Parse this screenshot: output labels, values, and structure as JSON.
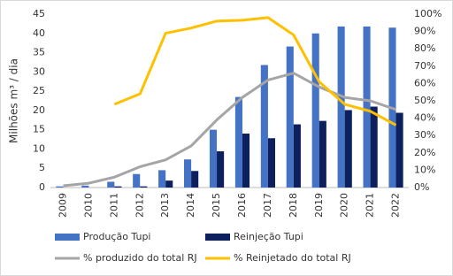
{
  "chart_data": {
    "type": "bar",
    "categories": [
      "2009",
      "2010",
      "2011",
      "2012",
      "2013",
      "2014",
      "2015",
      "2016",
      "2017",
      "2018",
      "2019",
      "2020",
      "2021",
      "2022"
    ],
    "y_label": "Milhões m³ / dia",
    "ylim": [
      0,
      45
    ],
    "yticks": [
      0,
      5,
      10,
      15,
      20,
      25,
      30,
      35,
      40,
      45
    ],
    "y2lim": [
      0,
      100
    ],
    "y2ticks": [
      {
        "value": 0,
        "label": "0%"
      },
      {
        "value": 10,
        "label": "10%"
      },
      {
        "value": 20,
        "label": "20%"
      },
      {
        "value": 30,
        "label": "30%"
      },
      {
        "value": 40,
        "label": "40%"
      },
      {
        "value": 50,
        "label": "50%"
      },
      {
        "value": 60,
        "label": "60%"
      },
      {
        "value": 70,
        "label": "70%"
      },
      {
        "value": 80,
        "label": "80%"
      },
      {
        "value": 90,
        "label": "90%"
      },
      {
        "value": 100,
        "label": "100%"
      }
    ],
    "series": [
      {
        "name": "Produção Tupi",
        "type": "bar",
        "color": "#4472c4",
        "values": [
          0.3,
          0.5,
          1.5,
          3.5,
          4.5,
          7.3,
          15,
          23.5,
          31.8,
          36.6,
          40,
          41.8,
          41.8,
          41.5
        ]
      },
      {
        "name": "Reinjeção Tupi",
        "type": "bar",
        "color": "#0d1f5c",
        "values": [
          0,
          0,
          0.3,
          0.3,
          1.8,
          4.3,
          9.4,
          14,
          12.8,
          16.4,
          17.3,
          20.1,
          21,
          19.4
        ]
      },
      {
        "name": "% produzido do total RJ",
        "type": "line",
        "axis": "y2",
        "color": "#a5a5a5",
        "values": [
          1,
          2.5,
          6,
          12,
          16,
          24,
          39,
          52,
          62,
          66,
          58,
          52,
          50,
          45
        ]
      },
      {
        "name": "% Reinjetado do total RJ",
        "type": "line",
        "axis": "y2",
        "color": "#ffc000",
        "values": [
          null,
          null,
          48,
          54,
          89,
          92,
          96,
          96.5,
          98,
          88,
          61,
          48,
          44,
          36
        ]
      }
    ]
  }
}
